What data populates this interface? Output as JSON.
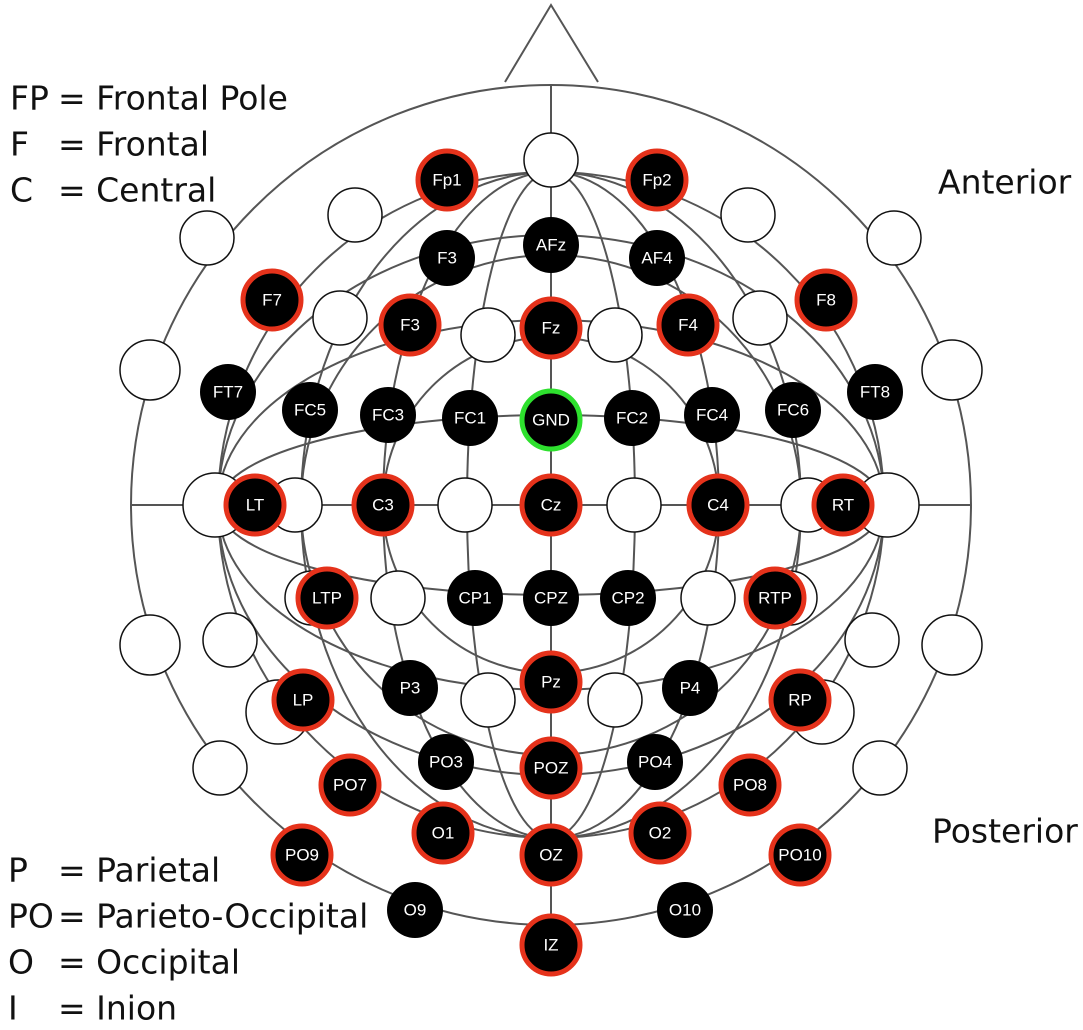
{
  "legend_top": [
    {
      "abbr": "FP",
      "definition": "= Frontal Pole"
    },
    {
      "abbr": "F",
      "definition": "= Frontal"
    },
    {
      "abbr": "C",
      "definition": "= Central"
    }
  ],
  "legend_bottom": [
    {
      "abbr": "P",
      "definition": "= Parietal"
    },
    {
      "abbr": "PO",
      "definition": "= Parieto-Occipital"
    },
    {
      "abbr": "O",
      "definition": "= Occipital"
    },
    {
      "abbr": "I",
      "definition": "= Inion"
    }
  ],
  "orientation": {
    "anterior": "Anterior",
    "posterior": "Posterior"
  },
  "electrodes": [
    {
      "label": "Fp1",
      "ring": "#e5321b"
    },
    {
      "label": "Fp2",
      "ring": "#e5321b"
    },
    {
      "label": "AFz",
      "ring": "none"
    },
    {
      "label": "F3",
      "ring": "none"
    },
    {
      "label": "AF4",
      "ring": "none"
    },
    {
      "label": "F7",
      "ring": "#e5321b"
    },
    {
      "label": "F3",
      "ring": "#e5321b"
    },
    {
      "label": "Fz",
      "ring": "#e5321b"
    },
    {
      "label": "F4",
      "ring": "#e5321b"
    },
    {
      "label": "F8",
      "ring": "#e5321b"
    },
    {
      "label": "FT7",
      "ring": "none"
    },
    {
      "label": "FC5",
      "ring": "none"
    },
    {
      "label": "FC3",
      "ring": "none"
    },
    {
      "label": "FC1",
      "ring": "none"
    },
    {
      "label": "GND",
      "ring": "#2ee02e"
    },
    {
      "label": "FC2",
      "ring": "none"
    },
    {
      "label": "FC4",
      "ring": "none"
    },
    {
      "label": "FC6",
      "ring": "none"
    },
    {
      "label": "FT8",
      "ring": "none"
    },
    {
      "label": "LT",
      "ring": "#e5321b"
    },
    {
      "label": "C3",
      "ring": "#e5321b"
    },
    {
      "label": "Cz",
      "ring": "#e5321b"
    },
    {
      "label": "C4",
      "ring": "#e5321b"
    },
    {
      "label": "RT",
      "ring": "#e5321b"
    },
    {
      "label": "LTP",
      "ring": "#e5321b"
    },
    {
      "label": "CP1",
      "ring": "none"
    },
    {
      "label": "CPZ",
      "ring": "none"
    },
    {
      "label": "CP2",
      "ring": "none"
    },
    {
      "label": "RTP",
      "ring": "#e5321b"
    },
    {
      "label": "LP",
      "ring": "#e5321b"
    },
    {
      "label": "P3",
      "ring": "none"
    },
    {
      "label": "Pz",
      "ring": "#e5321b"
    },
    {
      "label": "P4",
      "ring": "none"
    },
    {
      "label": "RP",
      "ring": "#e5321b"
    },
    {
      "label": "PO3",
      "ring": "none"
    },
    {
      "label": "POZ",
      "ring": "#e5321b"
    },
    {
      "label": "PO4",
      "ring": "none"
    },
    {
      "label": "PO7",
      "ring": "#e5321b"
    },
    {
      "label": "PO8",
      "ring": "#e5321b"
    },
    {
      "label": "O1",
      "ring": "#e5321b"
    },
    {
      "label": "OZ",
      "ring": "#e5321b"
    },
    {
      "label": "O2",
      "ring": "#e5321b"
    },
    {
      "label": "PO9",
      "ring": "#e5321b"
    },
    {
      "label": "PO10",
      "ring": "#e5321b"
    },
    {
      "label": "O9",
      "ring": "none"
    },
    {
      "label": "O10",
      "ring": "none"
    },
    {
      "label": "IZ",
      "ring": "#e5321b"
    }
  ]
}
